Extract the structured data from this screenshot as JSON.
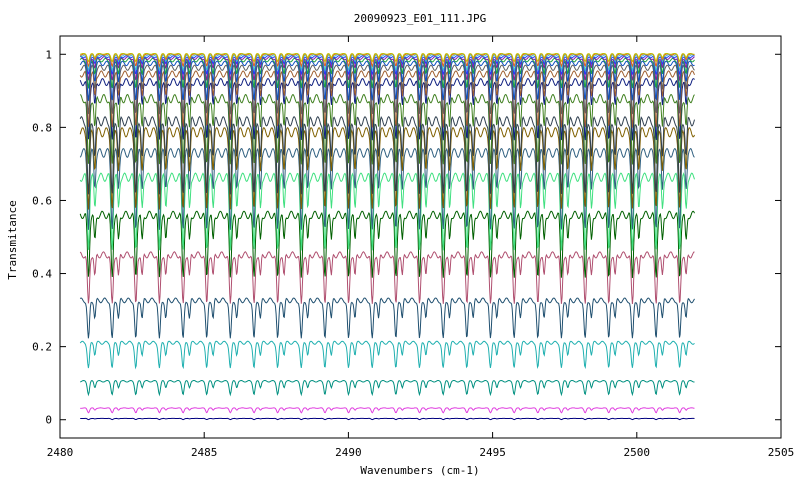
{
  "chart_data": {
    "type": "line",
    "title": "20090923_E01_111.JPG",
    "xlabel": "Wavenumbers (cm-1)",
    "ylabel": "Transmitance",
    "xlim": [
      2480,
      2505
    ],
    "ylim": [
      -0.05,
      1.05
    ],
    "x_ticks": [
      "2480",
      "2485",
      "2490",
      "2495",
      "2500",
      "2505"
    ],
    "y_ticks": [
      "0",
      "0.2",
      "0.4",
      "0.6",
      "0.8",
      "1"
    ],
    "grid": false,
    "legend": "none",
    "x_range": [
      2480.7,
      2502.0
    ],
    "line_spacing_cm1": 0.82,
    "series": [
      {
        "baseline": 0.003,
        "depth": 0.003,
        "color": "#000080"
      },
      {
        "baseline": 0.03,
        "depth": 0.012,
        "color": "#e040e0"
      },
      {
        "baseline": 0.1,
        "depth": 0.035,
        "color": "#009080"
      },
      {
        "baseline": 0.2,
        "depth": 0.07,
        "color": "#20b0b0"
      },
      {
        "baseline": 0.31,
        "depth": 0.11,
        "color": "#205070"
      },
      {
        "baseline": 0.43,
        "depth": 0.14,
        "color": "#b05070"
      },
      {
        "baseline": 0.535,
        "depth": 0.17,
        "color": "#006000"
      },
      {
        "baseline": 0.635,
        "depth": 0.19,
        "color": "#40e080"
      },
      {
        "baseline": 0.7,
        "depth": 0.2,
        "color": "#306080"
      },
      {
        "baseline": 0.755,
        "depth": 0.21,
        "color": "#806000"
      },
      {
        "baseline": 0.785,
        "depth": 0.21,
        "color": "#304050"
      },
      {
        "baseline": 0.85,
        "depth": 0.19,
        "color": "#408020"
      },
      {
        "baseline": 0.9,
        "depth": 0.16,
        "color": "#102080"
      },
      {
        "baseline": 0.925,
        "depth": 0.14,
        "color": "#a06030"
      },
      {
        "baseline": 0.945,
        "depth": 0.12,
        "color": "#606060"
      },
      {
        "baseline": 0.96,
        "depth": 0.1,
        "color": "#1050c0"
      },
      {
        "baseline": 0.972,
        "depth": 0.08,
        "color": "#20a040"
      },
      {
        "baseline": 0.98,
        "depth": 0.065,
        "color": "#8020a0"
      },
      {
        "baseline": 0.986,
        "depth": 0.05,
        "color": "#2040ff"
      },
      {
        "baseline": 0.991,
        "depth": 0.04,
        "color": "#40c0c0"
      },
      {
        "baseline": 0.995,
        "depth": 0.03,
        "color": "#e06020"
      },
      {
        "baseline": 0.998,
        "depth": 0.02,
        "color": "#c0c000"
      }
    ]
  }
}
